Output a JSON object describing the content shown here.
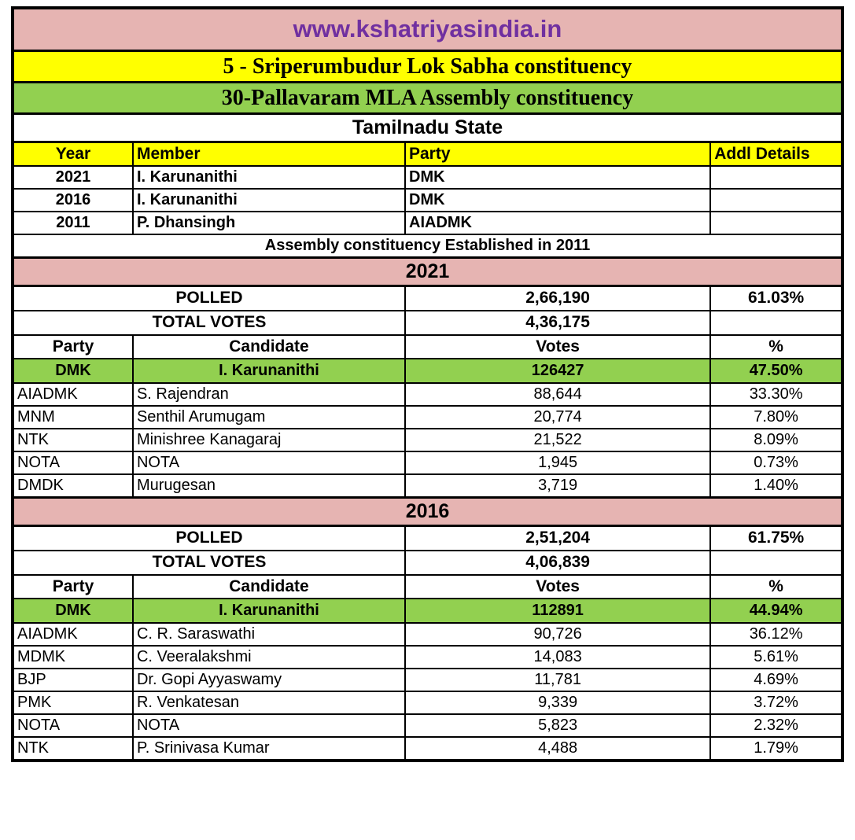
{
  "colors": {
    "pink": "#e6b4b2",
    "yellow": "#ffff00",
    "green": "#92d050",
    "purple": "#7030a0",
    "border": "#000000"
  },
  "banners": {
    "site": "www.kshatriyasindia.in",
    "lok_sabha": "5 - Sriperumbudur Lok Sabha constituency",
    "assembly": "30-Pallavaram MLA Assembly constituency",
    "state": "Tamilnadu State"
  },
  "members": {
    "headers": [
      "Year",
      "Member",
      "Party",
      "Addl Details"
    ],
    "rows": [
      {
        "year": "2021",
        "member": "I. Karunanithi",
        "party": "DMK",
        "addl": ""
      },
      {
        "year": "2016",
        "member": "I. Karunanithi",
        "party": "DMK",
        "addl": ""
      },
      {
        "year": "2011",
        "member": "P. Dhansingh",
        "party": "AIADMK",
        "addl": ""
      }
    ],
    "note": "Assembly constituency Established in 2011"
  },
  "elections": [
    {
      "year": "2021",
      "polled": {
        "label": "POLLED",
        "votes": "2,66,190",
        "pct": "61.03%"
      },
      "total": {
        "label": "TOTAL VOTES",
        "votes": "4,36,175",
        "pct": ""
      },
      "headers": [
        "Party",
        "Candidate",
        "Votes",
        "%"
      ],
      "winner": {
        "party": "DMK",
        "candidate": "I. Karunanithi",
        "votes": "126427",
        "pct": "47.50%"
      },
      "rows": [
        {
          "party": "AIADMK",
          "candidate": "S. Rajendran",
          "votes": "88,644",
          "pct": "33.30%"
        },
        {
          "party": "MNM",
          "candidate": "Senthil Arumugam",
          "votes": "20,774",
          "pct": "7.80%"
        },
        {
          "party": "NTK",
          "candidate": "Minishree Kanagaraj",
          "votes": "21,522",
          "pct": "8.09%"
        },
        {
          "party": "NOTA",
          "candidate": "NOTA",
          "votes": "1,945",
          "pct": "0.73%"
        },
        {
          "party": "DMDK",
          "candidate": "Murugesan",
          "votes": "3,719",
          "pct": "1.40%"
        }
      ]
    },
    {
      "year": "2016",
      "polled": {
        "label": "POLLED",
        "votes": "2,51,204",
        "pct": "61.75%"
      },
      "total": {
        "label": "TOTAL VOTES",
        "votes": "4,06,839",
        "pct": ""
      },
      "headers": [
        "Party",
        "Candidate",
        "Votes",
        "%"
      ],
      "winner": {
        "party": "DMK",
        "candidate": "I. Karunanithi",
        "votes": "112891",
        "pct": "44.94%"
      },
      "rows": [
        {
          "party": "AIADMK",
          "candidate": "C. R. Saraswathi",
          "votes": "90,726",
          "pct": "36.12%"
        },
        {
          "party": "MDMK",
          "candidate": "C. Veeralakshmi",
          "votes": "14,083",
          "pct": "5.61%"
        },
        {
          "party": "BJP",
          "candidate": "Dr. Gopi Ayyaswamy",
          "votes": "11,781",
          "pct": "4.69%"
        },
        {
          "party": "PMK",
          "candidate": "R. Venkatesan",
          "votes": "9,339",
          "pct": "3.72%"
        },
        {
          "party": "NOTA",
          "candidate": "NOTA",
          "votes": "5,823",
          "pct": "2.32%"
        },
        {
          "party": "NTK",
          "candidate": "P. Srinivasa Kumar",
          "votes": "4,488",
          "pct": "1.79%"
        }
      ]
    }
  ]
}
